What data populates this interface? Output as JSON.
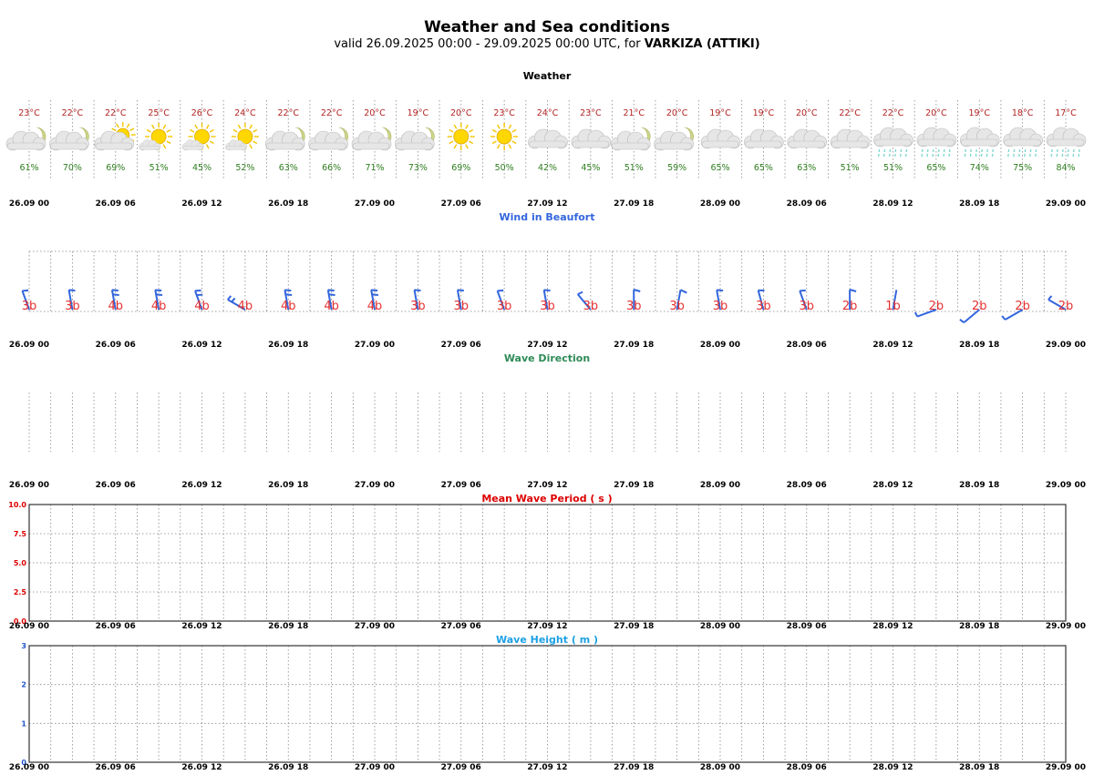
{
  "header": {
    "title": "Weather and Sea conditions",
    "valid_prefix": "valid 26.09.2025 00:00 - 29.09.2025 00:00 UTC, for ",
    "location": "VARKIZA (ATTIKI)"
  },
  "colors": {
    "temperature": "#b22222",
    "humidity": "#2e7d1f",
    "weather_title": "#000000",
    "wind_title": "#3366dd",
    "wind_barb": "#3366dd",
    "wind_label": "#e53030",
    "wave_dir_title": "#2e8b57",
    "period_title": "#dd0000",
    "period_ticks": "#dd0000",
    "height_title": "#1ea0e6",
    "height_ticks": "#2255cc",
    "sun": "#ffd700",
    "moon": "#cfd68a",
    "cloud": "#e6e6e6",
    "rain": "#7fd8d0"
  },
  "time_ticks": [
    "26.09 00",
    "26.09 06",
    "26.09 12",
    "26.09 18",
    "27.09 00",
    "27.09 06",
    "27.09 12",
    "27.09 18",
    "28.09 00",
    "28.09 06",
    "28.09 12",
    "28.09 18",
    "29.09 00"
  ],
  "chart_data": [
    {
      "type": "table",
      "title": "Weather",
      "times": [
        "26.09 00",
        "26.09 03",
        "26.09 06",
        "26.09 09",
        "26.09 12",
        "26.09 15",
        "26.09 18",
        "26.09 21",
        "27.09 00",
        "27.09 03",
        "27.09 06",
        "27.09 09",
        "27.09 12",
        "27.09 15",
        "27.09 18",
        "27.09 21",
        "28.09 00",
        "28.09 03",
        "28.09 06",
        "28.09 09",
        "28.09 12",
        "28.09 15",
        "28.09 18",
        "28.09 21",
        "29.09 00"
      ],
      "temperature": [
        "23°C",
        "22°C",
        "22°C",
        "25°C",
        "26°C",
        "24°C",
        "22°C",
        "22°C",
        "20°C",
        "19°C",
        "20°C",
        "23°C",
        "24°C",
        "23°C",
        "21°C",
        "20°C",
        "19°C",
        "19°C",
        "20°C",
        "22°C",
        "22°C",
        "20°C",
        "19°C",
        "18°C",
        "17°C"
      ],
      "humidity": [
        "61%",
        "70%",
        "69%",
        "51%",
        "45%",
        "52%",
        "63%",
        "66%",
        "71%",
        "73%",
        "69%",
        "50%",
        "42%",
        "45%",
        "51%",
        "59%",
        "65%",
        "65%",
        "63%",
        "51%",
        "51%",
        "65%",
        "74%",
        "75%",
        "84%"
      ],
      "icons": [
        "cloud-moon-icon",
        "cloud-moon-icon",
        "cloud-sun-icon",
        "sun-icon",
        "sun-icon",
        "sun-icon",
        "cloud-moon-icon",
        "cloud-moon-icon",
        "cloud-moon-icon",
        "cloud-moon-icon",
        "sun-icon",
        "sun-icon",
        "cloud-icon",
        "cloud-icon",
        "cloud-moon-icon",
        "cloud-moon-icon",
        "cloud-icon",
        "cloud-icon",
        "cloud-icon",
        "cloud-icon",
        "cloud-rain-icon",
        "cloud-rain-icon",
        "cloud-rain-icon",
        "cloud-rain-icon",
        "cloud-rain-icon"
      ]
    },
    {
      "type": "table",
      "title": "Wind in Beaufort",
      "beaufort": [
        "3b",
        "3b",
        "4b",
        "4b",
        "4b",
        "4b",
        "4b",
        "4b",
        "4b",
        "3b",
        "3b",
        "3b",
        "3b",
        "3b",
        "3b",
        "3b",
        "3b",
        "3b",
        "3b",
        "2b",
        "1b",
        "2b",
        "2b",
        "2b",
        "2b"
      ],
      "direction_from_deg": [
        340,
        350,
        350,
        350,
        340,
        300,
        350,
        350,
        350,
        350,
        350,
        340,
        350,
        320,
        0,
        10,
        350,
        345,
        340,
        0,
        10,
        250,
        230,
        240,
        300
      ]
    },
    {
      "type": "table",
      "title": "Wave Direction",
      "values": []
    },
    {
      "type": "line",
      "title": "Mean Wave Period ( s )",
      "ylim": [
        0,
        10
      ],
      "yticks": [
        "0.0",
        "2.5",
        "5.0",
        "7.5",
        "10.0"
      ],
      "series": []
    },
    {
      "type": "line",
      "title": "Wave Height ( m )",
      "ylim": [
        0,
        3
      ],
      "yticks": [
        "0",
        "1",
        "2",
        "3"
      ],
      "series": []
    }
  ]
}
